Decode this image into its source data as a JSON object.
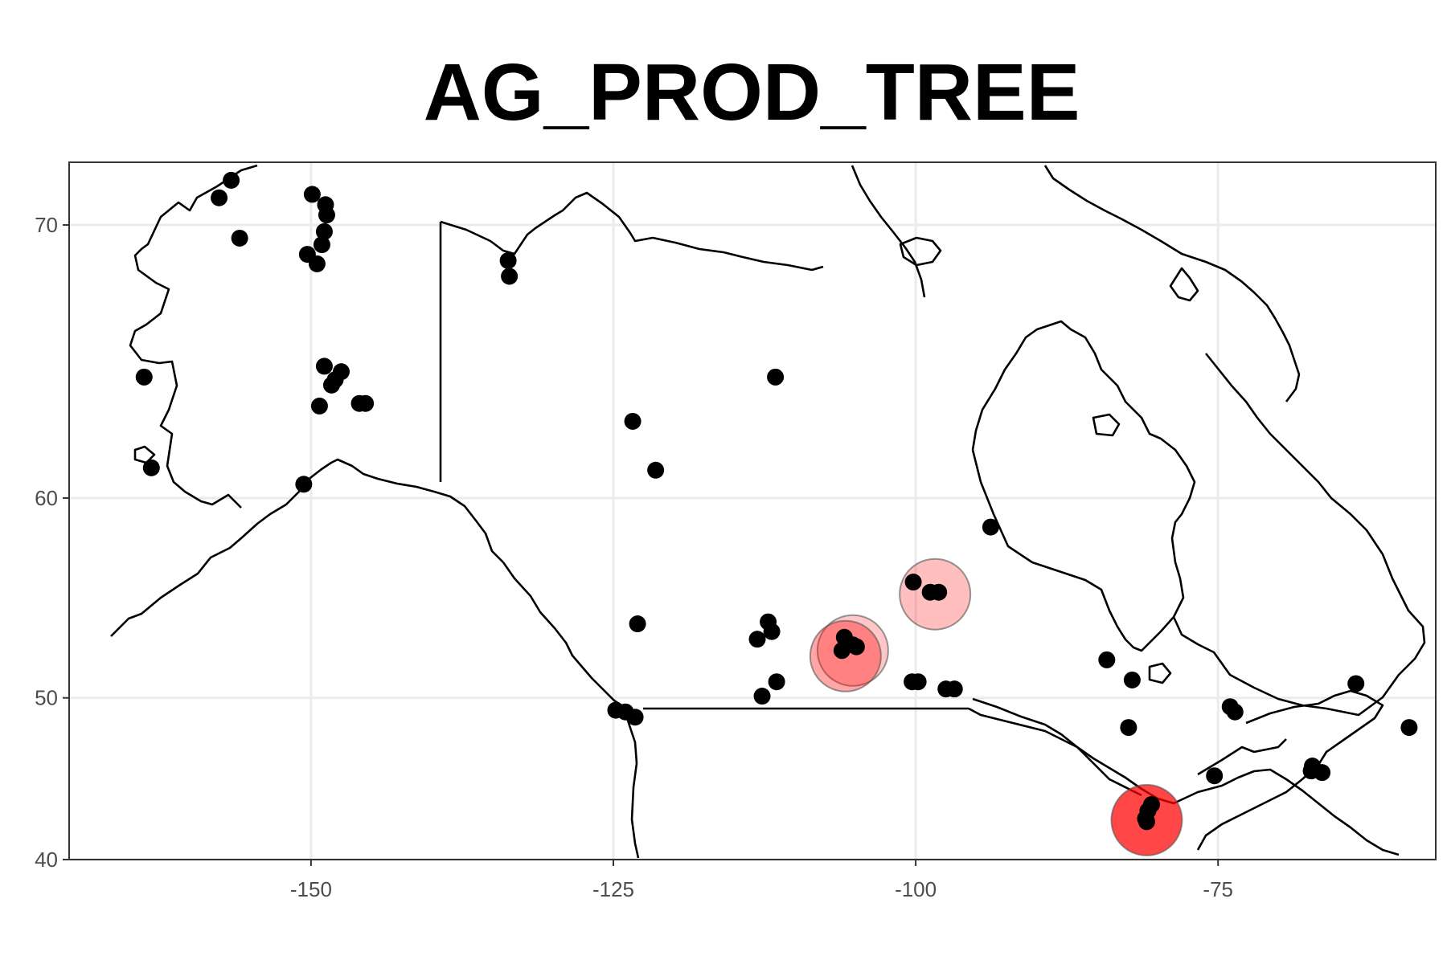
{
  "title": "AG_PROD_TREE",
  "colors": {
    "point": "#000000",
    "highlight": "#ff0000",
    "grid": "#ebebeb",
    "border": "#333333",
    "coast": "#000000"
  },
  "chart_data": {
    "type": "scatter",
    "xlim": [
      -170,
      -57
    ],
    "ylim": [
      40,
      71.8
    ],
    "y_scale": "mercator",
    "grid": true,
    "x_ticks": [
      -150,
      -125,
      -100,
      -75
    ],
    "y_ticks": [
      40,
      50,
      60,
      70
    ],
    "x_tick_labels": [
      "-150",
      "-125",
      "-100",
      "-75"
    ],
    "y_tick_labels": [
      "40",
      "50",
      "60",
      "70"
    ],
    "points": [
      [
        -156.6,
        71.3
      ],
      [
        -157.6,
        70.8
      ],
      [
        -155.9,
        69.6
      ],
      [
        -149.9,
        70.9
      ],
      [
        -148.8,
        70.6
      ],
      [
        -148.7,
        70.3
      ],
      [
        -148.9,
        69.8
      ],
      [
        -149.1,
        69.4
      ],
      [
        -150.3,
        69.1
      ],
      [
        -149.5,
        68.8
      ],
      [
        -133.7,
        68.9
      ],
      [
        -133.6,
        68.4
      ],
      [
        -163.8,
        64.9
      ],
      [
        -148.9,
        65.3
      ],
      [
        -147.5,
        65.1
      ],
      [
        -148.0,
        64.8
      ],
      [
        -148.3,
        64.6
      ],
      [
        -149.3,
        63.8
      ],
      [
        -146.0,
        63.9
      ],
      [
        -145.5,
        63.9
      ],
      [
        -163.2,
        61.3
      ],
      [
        -150.6,
        60.6
      ],
      [
        -111.6,
        64.9
      ],
      [
        -123.4,
        63.2
      ],
      [
        -121.5,
        61.2
      ],
      [
        -93.8,
        58.7
      ],
      [
        -100.2,
        56.1
      ],
      [
        -98.8,
        55.6
      ],
      [
        -98.1,
        55.6
      ],
      [
        -123.0,
        54.0
      ],
      [
        -112.2,
        54.1
      ],
      [
        -111.9,
        53.6
      ],
      [
        -113.1,
        53.2
      ],
      [
        -105.9,
        53.3
      ],
      [
        -105.2,
        52.9
      ],
      [
        -104.9,
        52.8
      ],
      [
        -106.1,
        52.6
      ],
      [
        -111.5,
        50.9
      ],
      [
        -112.7,
        50.1
      ],
      [
        -100.3,
        50.9
      ],
      [
        -99.8,
        50.9
      ],
      [
        -97.5,
        50.5
      ],
      [
        -96.8,
        50.5
      ],
      [
        -84.2,
        52.1
      ],
      [
        -82.1,
        51.0
      ],
      [
        -124.8,
        49.3
      ],
      [
        -124.0,
        49.2
      ],
      [
        -123.2,
        48.9
      ],
      [
        -82.4,
        48.3
      ],
      [
        -80.5,
        43.6
      ],
      [
        -80.8,
        43.2
      ],
      [
        -81.0,
        42.7
      ],
      [
        -80.9,
        42.5
      ],
      [
        -75.3,
        45.4
      ],
      [
        -74.0,
        49.5
      ],
      [
        -73.6,
        49.2
      ],
      [
        -67.2,
        46.0
      ],
      [
        -67.3,
        45.7
      ],
      [
        -66.4,
        45.6
      ],
      [
        -63.6,
        50.8
      ],
      [
        -59.2,
        48.3
      ]
    ],
    "highlights": [
      {
        "lon": -105.2,
        "lat": 52.6,
        "alpha": 0.22
      },
      {
        "lon": -105.8,
        "lat": 52.3,
        "alpha": 0.35
      },
      {
        "lon": -98.4,
        "lat": 55.5,
        "alpha": 0.25
      },
      {
        "lon": -80.9,
        "lat": 42.6,
        "alpha": 0.72
      }
    ]
  }
}
